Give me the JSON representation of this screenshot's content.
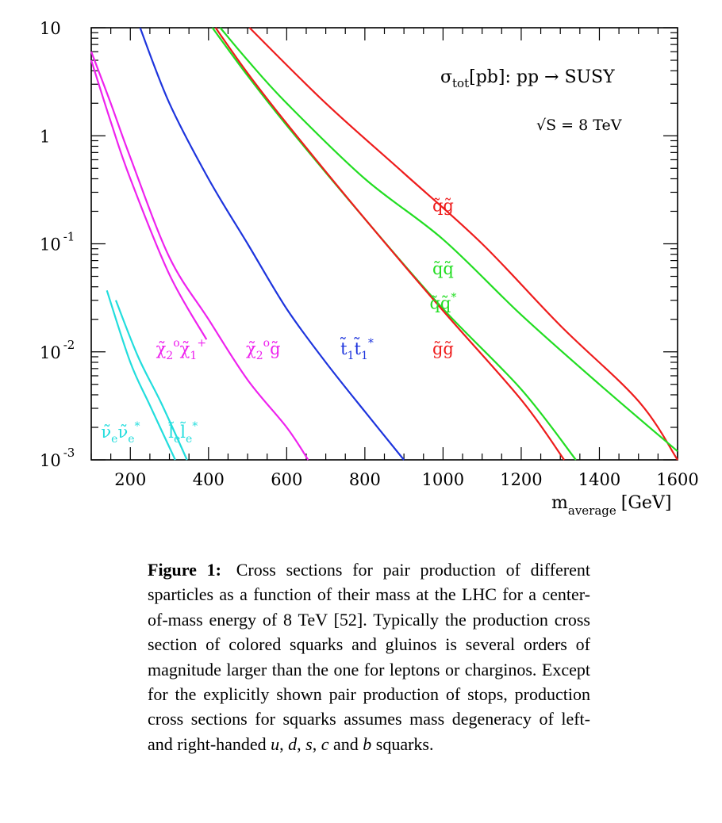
{
  "chart_data": {
    "type": "line",
    "xlabel_main": "m",
    "xlabel_sub": "average",
    "xlabel_unit": "[GeV]",
    "xlim": [
      100,
      1600
    ],
    "ylim": [
      0.001,
      10
    ],
    "y_scale": "log",
    "x_ticks": [
      200,
      400,
      600,
      800,
      1000,
      1200,
      1400,
      1600
    ],
    "y_ticks": [
      {
        "base": "10",
        "exp": "",
        "value": 10
      },
      {
        "base": "1",
        "exp": "",
        "value": 1
      },
      {
        "base": "10",
        "exp": "-1",
        "value": 0.1
      },
      {
        "base": "10",
        "exp": "-2",
        "value": 0.01
      },
      {
        "base": "10",
        "exp": "-3",
        "value": 0.001
      }
    ],
    "title_sigma": "σ",
    "title_sub": "tot",
    "title_rest": "[pb]: pp → SUSY",
    "energy_label": "√S = 8 TeV",
    "series": [
      {
        "name": "q̃g̃",
        "color": "#ee1c1c",
        "points": [
          [
            505,
            10
          ],
          [
            700,
            2
          ],
          [
            900,
            0.45
          ],
          [
            1100,
            0.1
          ],
          [
            1300,
            0.0175
          ],
          [
            1500,
            0.0035
          ],
          [
            1600,
            0.001
          ]
        ]
      },
      {
        "name": "q̃q̃",
        "color": "#22dd22",
        "points": [
          [
            430,
            10
          ],
          [
            500,
            5
          ],
          [
            600,
            2
          ],
          [
            800,
            0.4
          ],
          [
            1000,
            0.11
          ],
          [
            1200,
            0.022
          ],
          [
            1400,
            0.005
          ],
          [
            1600,
            0.0012
          ]
        ]
      },
      {
        "name": "q̃q̃*",
        "color": "#22dd22",
        "points": [
          [
            410,
            10
          ],
          [
            500,
            3.6
          ],
          [
            600,
            1.25
          ],
          [
            800,
            0.17
          ],
          [
            1000,
            0.025
          ],
          [
            1200,
            0.0045
          ],
          [
            1340,
            0.001
          ]
        ]
      },
      {
        "name": "g̃g̃",
        "color": "#ee1c1c",
        "points": [
          [
            418,
            10
          ],
          [
            500,
            3.8
          ],
          [
            600,
            1.3
          ],
          [
            800,
            0.17
          ],
          [
            1000,
            0.024
          ],
          [
            1200,
            0.0036
          ],
          [
            1310,
            0.001
          ]
        ]
      },
      {
        "name": "t̃₁t̃₁*",
        "color": "#1d34dd",
        "points": [
          [
            225,
            10
          ],
          [
            300,
            2
          ],
          [
            400,
            0.4
          ],
          [
            500,
            0.1
          ],
          [
            600,
            0.025
          ],
          [
            700,
            0.008
          ],
          [
            800,
            0.0028
          ],
          [
            900,
            0.001
          ]
        ]
      },
      {
        "name": "χ̃₂⁰g̃",
        "color": "#ee22ee",
        "points": [
          [
            100,
            6
          ],
          [
            150,
            2
          ],
          [
            200,
            0.63
          ],
          [
            300,
            0.075
          ],
          [
            400,
            0.02
          ],
          [
            500,
            0.0055
          ],
          [
            600,
            0.002
          ],
          [
            655,
            0.001
          ]
        ]
      },
      {
        "name": "χ̃₂⁰χ̃₁⁺",
        "color": "#ee22ee",
        "points": [
          [
            100,
            5
          ],
          [
            150,
            1.35
          ],
          [
            200,
            0.4
          ],
          [
            300,
            0.052
          ],
          [
            395,
            0.013
          ]
        ]
      },
      {
        "name": "ν̃ₑν̃ₑ*",
        "color": "#22dddd",
        "points": [
          [
            140,
            0.037
          ],
          [
            200,
            0.008
          ],
          [
            250,
            0.0032
          ],
          [
            315,
            0.001
          ]
        ]
      },
      {
        "name": "l̃ₑl̃ₑ*",
        "color": "#22dddd",
        "points": [
          [
            163,
            0.03
          ],
          [
            220,
            0.009
          ],
          [
            280,
            0.0033
          ],
          [
            345,
            0.001
          ]
        ]
      }
    ],
    "labels": [
      {
        "parts": [
          [
            "q̃g̃",
            ""
          ]
        ],
        "color": "#ee1c1c",
        "x": 1000,
        "y": 0.2
      },
      {
        "parts": [
          [
            "q̃q̃",
            ""
          ]
        ],
        "color": "#22dd22",
        "x": 1000,
        "y": 0.052
      },
      {
        "parts": [
          [
            "q̃q̃",
            "sup:*"
          ]
        ],
        "color": "#22dd22",
        "x": 1000,
        "y": 0.025
      },
      {
        "parts": [
          [
            "g̃g̃",
            ""
          ]
        ],
        "color": "#ee1c1c",
        "x": 1000,
        "y": 0.0095
      },
      {
        "parts": [
          [
            "t̃",
            "sub:1"
          ],
          [
            "t̃",
            "sub:1"
          ],
          [
            "",
            "sup:*"
          ]
        ],
        "color": "#1d34dd",
        "x": 780,
        "y": 0.0095
      },
      {
        "parts": [
          [
            "χ̃",
            "sub:2"
          ],
          [
            "",
            "sup:o"
          ],
          [
            "g̃",
            ""
          ]
        ],
        "color": "#ee22ee",
        "x": 540,
        "y": 0.0095
      },
      {
        "parts": [
          [
            "χ̃",
            "sub:2"
          ],
          [
            "",
            "sup:o"
          ],
          [
            "χ̃",
            "sub:1"
          ],
          [
            "",
            "sup:+"
          ]
        ],
        "color": "#ee22ee",
        "x": 330,
        "y": 0.0095
      },
      {
        "parts": [
          [
            "ν̃",
            "sub:e"
          ],
          [
            "ν̃",
            "sub:e"
          ],
          [
            "",
            "sup:*"
          ]
        ],
        "color": "#22dddd",
        "x": 175,
        "y": 0.0016
      },
      {
        "parts": [
          [
            "l̃",
            "sub:e"
          ],
          [
            "l̃",
            "sub:e"
          ],
          [
            "",
            "sup:*"
          ]
        ],
        "color": "#22dddd",
        "x": 335,
        "y": 0.0016
      }
    ]
  },
  "caption": {
    "label": "Figure 1:",
    "part1": "Cross sections for pair production of different sparticles as a function of their mass at the LHC for a center-of-mass energy of 8 TeV [52]. Typically the production cross section of colored squarks and gluinos is several orders of magnitude larger than the one for leptons or charginos. Except for the explicitly shown pair production of stops, production cross sections for squarks assumes mass degeneracy of left- and right-handed",
    "q1": "u",
    "sep1": ",",
    "q2": "d",
    "sep2": ",",
    "q3": "s",
    "sep3": ",",
    "q4": "c",
    "and_word": "and",
    "q5": "b",
    "end": "squarks."
  }
}
